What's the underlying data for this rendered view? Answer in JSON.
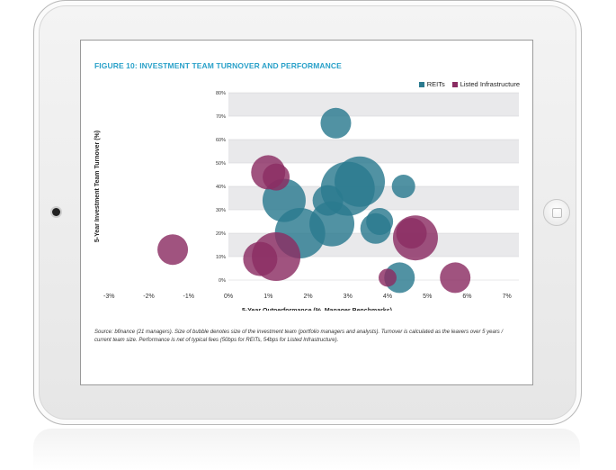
{
  "figure": {
    "title": "FIGURE 10: INVESTMENT TEAM TURNOVER AND PERFORMANCE",
    "source": "Source: bfinance (21 managers). Size of bubble denotes size of the investment team (portfolio managers and analysts). Turnover is calculated as the leavers over 5 years / current team size. Performance is net of typical fees (50bps for REITs, 54bps for Listed Infrastructure)."
  },
  "legend": {
    "reits": "REITs",
    "infra": "Listed Infrastructure"
  },
  "colors": {
    "reits": "#2b7a8f",
    "infra": "#8b2d63",
    "title": "#2aa1c9"
  },
  "chart_data": {
    "type": "scatter",
    "title": "FIGURE 10: INVESTMENT TEAM TURNOVER AND PERFORMANCE",
    "xlabel": "5-Year Outperformance (%, Manager Benchmarks)",
    "ylabel": "5-Year Investment Team Turnover (%)",
    "xlim": [
      -3.3,
      7.3
    ],
    "ylim": [
      0,
      80
    ],
    "xticks": [
      -3,
      -2,
      -1,
      0,
      1,
      2,
      3,
      4,
      5,
      6,
      7
    ],
    "xtick_labels": [
      "-3%",
      "-2%",
      "-1%",
      "0%",
      "1%",
      "2%",
      "3%",
      "4%",
      "5%",
      "6%",
      "7%"
    ],
    "yticks": [
      0,
      10,
      20,
      30,
      40,
      50,
      60,
      70,
      80
    ],
    "ytick_labels": [
      "0%",
      "10%",
      "20%",
      "30%",
      "40%",
      "50%",
      "60%",
      "70%",
      "80%"
    ],
    "grid": "horizontal bands",
    "legend_position": "top-right",
    "series": [
      {
        "name": "REITs",
        "points": [
          {
            "x": 2.7,
            "y": 67,
            "size": 17
          },
          {
            "x": 3.3,
            "y": 42,
            "size": 28
          },
          {
            "x": 3.0,
            "y": 39,
            "size": 30
          },
          {
            "x": 1.4,
            "y": 34,
            "size": 24
          },
          {
            "x": 2.5,
            "y": 34,
            "size": 17
          },
          {
            "x": 2.6,
            "y": 24,
            "size": 25
          },
          {
            "x": 1.8,
            "y": 20,
            "size": 28
          },
          {
            "x": 3.7,
            "y": 22,
            "size": 17
          },
          {
            "x": 3.8,
            "y": 25,
            "size": 15
          },
          {
            "x": 4.4,
            "y": 40,
            "size": 13
          },
          {
            "x": 4.3,
            "y": 1,
            "size": 17
          }
        ]
      },
      {
        "name": "Listed Infrastructure",
        "points": [
          {
            "x": 1.0,
            "y": 46,
            "size": 19
          },
          {
            "x": 1.2,
            "y": 44,
            "size": 15
          },
          {
            "x": 0.8,
            "y": 9,
            "size": 19
          },
          {
            "x": 1.2,
            "y": 10,
            "size": 27
          },
          {
            "x": 4.7,
            "y": 18,
            "size": 25
          },
          {
            "x": 4.6,
            "y": 20,
            "size": 17
          },
          {
            "x": 4.0,
            "y": 1,
            "size": 10
          },
          {
            "x": 5.7,
            "y": 1,
            "size": 17
          },
          {
            "x": -1.4,
            "y": 13,
            "size": 17
          }
        ]
      }
    ]
  }
}
